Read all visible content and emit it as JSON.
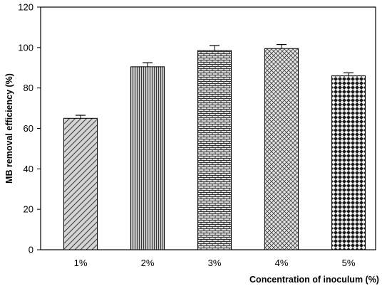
{
  "chart_data": {
    "type": "bar",
    "title": "",
    "xlabel": "Concentration of inoculum (%)",
    "ylabel": "MB removal efficiency (%)",
    "ylim": [
      0,
      120
    ],
    "yticks": [
      "0",
      "20",
      "40",
      "60",
      "80",
      "100",
      "120"
    ],
    "categories": [
      "1%",
      "2%",
      "3%",
      "4%",
      "5%"
    ],
    "values": [
      65,
      90.5,
      98.5,
      99.5,
      86
    ],
    "errors": [
      1.5,
      2,
      2.5,
      2,
      1.5
    ],
    "fills": [
      "diagonal-hatch",
      "vertical-lines",
      "brick",
      "crosshatch",
      "diamond-check"
    ],
    "colors": {
      "axis": "#000000",
      "bar_fill": "#d9d9d9",
      "pattern": "#333333"
    }
  }
}
